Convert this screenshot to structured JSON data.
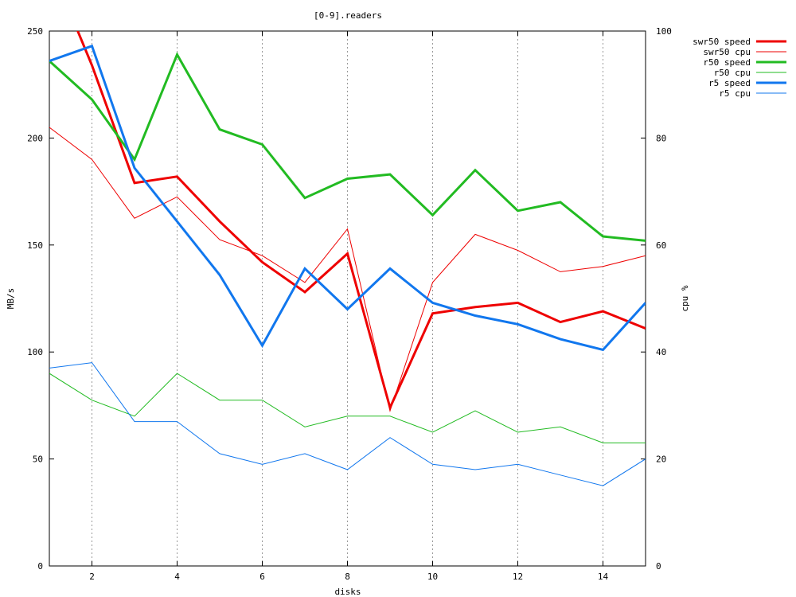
{
  "chart_data": {
    "type": "line",
    "title": "[0-9].readers",
    "xlabel": "disks",
    "ylabel": "MB/s",
    "y2label": "cpu %",
    "xlim": [
      1,
      15
    ],
    "ylim": [
      0,
      250
    ],
    "y2lim": [
      0,
      100
    ],
    "x_ticks": [
      2,
      4,
      6,
      8,
      10,
      12,
      14
    ],
    "y_ticks": [
      0,
      50,
      100,
      150,
      200,
      250
    ],
    "y2_ticks": [
      0,
      20,
      40,
      60,
      80,
      100
    ],
    "grid": "vertical dotted at x ticks",
    "legend_position": "top-right, outside plot",
    "x": [
      1,
      2,
      3,
      4,
      5,
      6,
      7,
      8,
      9,
      10,
      11,
      12,
      13,
      14,
      15
    ],
    "series": [
      {
        "name": "swr50 speed",
        "axis": "left",
        "color": "#ee0000",
        "width": 3,
        "values": [
          282,
          234,
          179,
          182,
          161,
          142,
          128,
          146,
          74,
          118,
          121,
          123,
          114,
          119,
          111
        ]
      },
      {
        "name": "swr50 cpu",
        "axis": "right",
        "color": "#ee0000",
        "width": 1,
        "values": [
          82,
          76,
          65,
          69,
          61,
          58,
          53,
          63,
          29,
          53,
          62,
          59,
          55,
          56,
          58
        ]
      },
      {
        "name": "r50 speed",
        "axis": "left",
        "color": "#22bb22",
        "width": 3,
        "values": [
          236,
          218,
          190,
          239,
          204,
          197,
          172,
          181,
          183,
          164,
          185,
          166,
          170,
          154,
          152
        ]
      },
      {
        "name": "r50 cpu",
        "axis": "right",
        "color": "#22bb22",
        "width": 1,
        "values": [
          36,
          31,
          28,
          36,
          31,
          31,
          26,
          28,
          28,
          25,
          29,
          25,
          26,
          23,
          23
        ]
      },
      {
        "name": "r5 speed",
        "axis": "left",
        "color": "#1177ee",
        "width": 3,
        "values": [
          236,
          243,
          186,
          161,
          136,
          103,
          139,
          120,
          139,
          123,
          117,
          113,
          106,
          101,
          123
        ]
      },
      {
        "name": "r5 cpu",
        "axis": "right",
        "color": "#1177ee",
        "width": 1,
        "values": [
          37,
          38,
          27,
          27,
          21,
          19,
          21,
          18,
          24,
          19,
          18,
          19,
          17,
          15,
          20
        ]
      }
    ]
  }
}
